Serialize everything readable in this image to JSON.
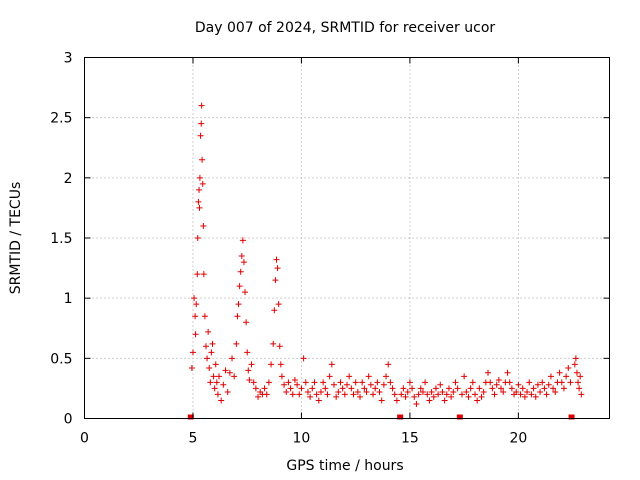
{
  "chart_data": {
    "type": "scatter",
    "title": "Day 007 of 2024, SRMTID for receiver ucor",
    "xlabel": "GPS time / hours",
    "ylabel": "SRMTID / TECUs",
    "xlim": [
      0,
      24.2
    ],
    "ylim": [
      0,
      3
    ],
    "x_ticks": [
      0,
      5,
      10,
      15,
      20
    ],
    "x_tick_labels": [
      "0",
      "5",
      "10",
      "15",
      "20"
    ],
    "y_ticks": [
      0,
      0.5,
      1,
      1.5,
      2,
      2.5,
      3
    ],
    "y_tick_labels": [
      "0",
      "0.5",
      "1",
      "1.5",
      "2",
      "2.5",
      "3"
    ],
    "grid": true,
    "marker": "plus",
    "color": "#e00000",
    "zero_markers_x": [
      4.9,
      14.55,
      17.3,
      22.45
    ],
    "series": [
      {
        "name": "SRMTID",
        "points": [
          [
            4.95,
            0.42
          ],
          [
            5.0,
            0.55
          ],
          [
            5.05,
            1.0
          ],
          [
            5.1,
            0.85
          ],
          [
            5.12,
            0.7
          ],
          [
            5.15,
            0.95
          ],
          [
            5.2,
            1.2
          ],
          [
            5.22,
            1.5
          ],
          [
            5.25,
            1.8
          ],
          [
            5.28,
            1.9
          ],
          [
            5.3,
            1.75
          ],
          [
            5.32,
            2.0
          ],
          [
            5.35,
            2.35
          ],
          [
            5.38,
            2.45
          ],
          [
            5.4,
            2.6
          ],
          [
            5.42,
            2.15
          ],
          [
            5.45,
            1.95
          ],
          [
            5.48,
            1.6
          ],
          [
            5.5,
            1.2
          ],
          [
            5.55,
            0.85
          ],
          [
            5.6,
            0.6
          ],
          [
            5.65,
            0.5
          ],
          [
            5.7,
            0.72
          ],
          [
            5.75,
            0.42
          ],
          [
            5.8,
            0.3
          ],
          [
            5.85,
            0.55
          ],
          [
            5.9,
            0.62
          ],
          [
            5.95,
            0.35
          ],
          [
            6.0,
            0.25
          ],
          [
            6.05,
            0.45
          ],
          [
            6.1,
            0.3
          ],
          [
            6.15,
            0.2
          ],
          [
            6.2,
            0.35
          ],
          [
            6.3,
            0.15
          ],
          [
            6.4,
            0.28
          ],
          [
            6.5,
            0.4
          ],
          [
            6.6,
            0.22
          ],
          [
            6.7,
            0.38
          ],
          [
            6.8,
            0.5
          ],
          [
            6.9,
            0.35
          ],
          [
            7.0,
            0.62
          ],
          [
            7.05,
            0.85
          ],
          [
            7.1,
            0.95
          ],
          [
            7.15,
            1.1
          ],
          [
            7.2,
            1.22
          ],
          [
            7.25,
            1.35
          ],
          [
            7.3,
            1.48
          ],
          [
            7.35,
            1.3
          ],
          [
            7.4,
            1.05
          ],
          [
            7.45,
            0.8
          ],
          [
            7.5,
            0.55
          ],
          [
            7.55,
            0.4
          ],
          [
            7.6,
            0.32
          ],
          [
            7.7,
            0.45
          ],
          [
            7.8,
            0.3
          ],
          [
            7.9,
            0.25
          ],
          [
            8.0,
            0.18
          ],
          [
            8.1,
            0.22
          ],
          [
            8.2,
            0.2
          ],
          [
            8.3,
            0.25
          ],
          [
            8.4,
            0.2
          ],
          [
            8.5,
            0.3
          ],
          [
            8.6,
            0.45
          ],
          [
            8.7,
            0.62
          ],
          [
            8.75,
            0.9
          ],
          [
            8.8,
            1.15
          ],
          [
            8.85,
            1.32
          ],
          [
            8.9,
            1.25
          ],
          [
            8.95,
            0.95
          ],
          [
            9.0,
            0.6
          ],
          [
            9.05,
            0.45
          ],
          [
            9.1,
            0.35
          ],
          [
            9.2,
            0.28
          ],
          [
            9.3,
            0.22
          ],
          [
            9.4,
            0.3
          ],
          [
            9.5,
            0.25
          ],
          [
            9.6,
            0.2
          ],
          [
            9.7,
            0.32
          ],
          [
            9.8,
            0.28
          ],
          [
            9.9,
            0.2
          ],
          [
            10.0,
            0.25
          ],
          [
            10.1,
            0.5
          ],
          [
            10.2,
            0.3
          ],
          [
            10.3,
            0.22
          ],
          [
            10.4,
            0.18
          ],
          [
            10.5,
            0.25
          ],
          [
            10.6,
            0.3
          ],
          [
            10.7,
            0.2
          ],
          [
            10.8,
            0.15
          ],
          [
            10.9,
            0.22
          ],
          [
            11.0,
            0.3
          ],
          [
            11.1,
            0.25
          ],
          [
            11.2,
            0.2
          ],
          [
            11.3,
            0.35
          ],
          [
            11.4,
            0.45
          ],
          [
            11.5,
            0.28
          ],
          [
            11.6,
            0.18
          ],
          [
            11.7,
            0.22
          ],
          [
            11.8,
            0.3
          ],
          [
            11.9,
            0.25
          ],
          [
            12.0,
            0.2
          ],
          [
            12.1,
            0.28
          ],
          [
            12.2,
            0.35
          ],
          [
            12.3,
            0.25
          ],
          [
            12.4,
            0.2
          ],
          [
            12.5,
            0.3
          ],
          [
            12.6,
            0.22
          ],
          [
            12.7,
            0.18
          ],
          [
            12.8,
            0.3
          ],
          [
            12.9,
            0.25
          ],
          [
            13.0,
            0.22
          ],
          [
            13.1,
            0.35
          ],
          [
            13.2,
            0.28
          ],
          [
            13.3,
            0.2
          ],
          [
            13.4,
            0.25
          ],
          [
            13.5,
            0.3
          ],
          [
            13.6,
            0.22
          ],
          [
            13.7,
            0.15
          ],
          [
            13.8,
            0.28
          ],
          [
            13.9,
            0.35
          ],
          [
            14.0,
            0.45
          ],
          [
            14.1,
            0.3
          ],
          [
            14.2,
            0.25
          ],
          [
            14.3,
            0.2
          ],
          [
            14.4,
            0.15
          ],
          [
            14.6,
            0.2
          ],
          [
            14.7,
            0.25
          ],
          [
            14.8,
            0.18
          ],
          [
            14.9,
            0.22
          ],
          [
            15.0,
            0.3
          ],
          [
            15.1,
            0.25
          ],
          [
            15.2,
            0.18
          ],
          [
            15.3,
            0.12
          ],
          [
            15.4,
            0.2
          ],
          [
            15.5,
            0.25
          ],
          [
            15.6,
            0.22
          ],
          [
            15.7,
            0.3
          ],
          [
            15.8,
            0.2
          ],
          [
            15.9,
            0.15
          ],
          [
            16.0,
            0.22
          ],
          [
            16.1,
            0.18
          ],
          [
            16.2,
            0.25
          ],
          [
            16.3,
            0.2
          ],
          [
            16.4,
            0.28
          ],
          [
            16.5,
            0.22
          ],
          [
            16.6,
            0.15
          ],
          [
            16.7,
            0.2
          ],
          [
            16.8,
            0.25
          ],
          [
            16.9,
            0.18
          ],
          [
            17.0,
            0.22
          ],
          [
            17.1,
            0.3
          ],
          [
            17.2,
            0.25
          ],
          [
            17.4,
            0.2
          ],
          [
            17.5,
            0.35
          ],
          [
            17.6,
            0.22
          ],
          [
            17.7,
            0.18
          ],
          [
            17.8,
            0.25
          ],
          [
            17.9,
            0.3
          ],
          [
            18.0,
            0.2
          ],
          [
            18.1,
            0.15
          ],
          [
            18.2,
            0.25
          ],
          [
            18.3,
            0.18
          ],
          [
            18.4,
            0.22
          ],
          [
            18.5,
            0.3
          ],
          [
            18.6,
            0.38
          ],
          [
            18.7,
            0.3
          ],
          [
            18.8,
            0.25
          ],
          [
            18.9,
            0.2
          ],
          [
            19.0,
            0.28
          ],
          [
            19.1,
            0.32
          ],
          [
            19.2,
            0.25
          ],
          [
            19.3,
            0.22
          ],
          [
            19.4,
            0.3
          ],
          [
            19.5,
            0.38
          ],
          [
            19.6,
            0.3
          ],
          [
            19.7,
            0.25
          ],
          [
            19.8,
            0.2
          ],
          [
            19.9,
            0.22
          ],
          [
            20.0,
            0.28
          ],
          [
            20.1,
            0.2
          ],
          [
            20.2,
            0.25
          ],
          [
            20.3,
            0.18
          ],
          [
            20.4,
            0.22
          ],
          [
            20.5,
            0.3
          ],
          [
            20.6,
            0.2
          ],
          [
            20.7,
            0.25
          ],
          [
            20.8,
            0.18
          ],
          [
            20.9,
            0.28
          ],
          [
            21.0,
            0.22
          ],
          [
            21.1,
            0.3
          ],
          [
            21.2,
            0.25
          ],
          [
            21.3,
            0.2
          ],
          [
            21.4,
            0.28
          ],
          [
            21.5,
            0.35
          ],
          [
            21.6,
            0.25
          ],
          [
            21.7,
            0.22
          ],
          [
            21.8,
            0.3
          ],
          [
            21.9,
            0.38
          ],
          [
            22.0,
            0.3
          ],
          [
            22.1,
            0.25
          ],
          [
            22.2,
            0.35
          ],
          [
            22.3,
            0.42
          ],
          [
            22.4,
            0.3
          ],
          [
            22.6,
            0.45
          ],
          [
            22.65,
            0.5
          ],
          [
            22.7,
            0.38
          ],
          [
            22.75,
            0.3
          ],
          [
            22.8,
            0.25
          ],
          [
            22.85,
            0.35
          ],
          [
            22.9,
            0.2
          ]
        ]
      }
    ]
  }
}
